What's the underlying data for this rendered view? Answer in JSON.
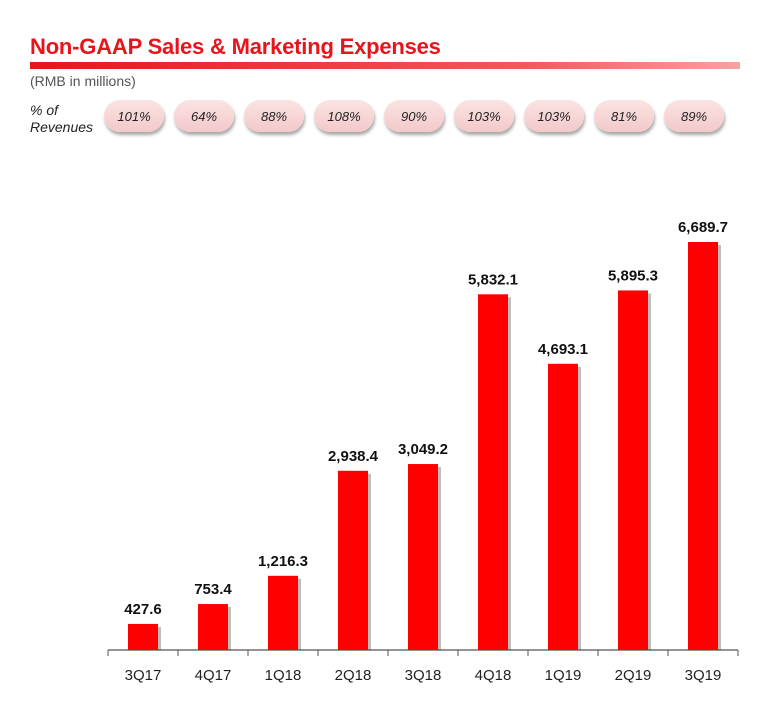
{
  "header": {
    "title": "Non-GAAP Sales & Marketing Expenses",
    "subtitle": "(RMB in millions)",
    "pct_label_line1": "% of",
    "pct_label_line2": "Revenues"
  },
  "percent_of_revenues": [
    "101%",
    "64%",
    "88%",
    "108%",
    "90%",
    "103%",
    "103%",
    "81%",
    "89%"
  ],
  "colors": {
    "bar": "#ff0000",
    "title": "#e8141b",
    "axis": "#555555"
  },
  "chart_data": {
    "type": "bar",
    "title": "Non-GAAP Sales & Marketing Expenses",
    "ylabel": "RMB in millions",
    "categories": [
      "3Q17",
      "4Q17",
      "1Q18",
      "2Q18",
      "3Q18",
      "4Q18",
      "1Q19",
      "2Q19",
      "3Q19"
    ],
    "values": [
      427.6,
      753.4,
      1216.3,
      2938.4,
      3049.2,
      5832.1,
      4693.1,
      5895.3,
      6689.7
    ],
    "value_labels": [
      "427.6",
      "753.4",
      "1,216.3",
      "2,938.4",
      "3,049.2",
      "5,832.1",
      "4,693.1",
      "5,895.3",
      "6,689.7"
    ],
    "ylim": [
      0,
      6689.7
    ],
    "grid": false
  }
}
